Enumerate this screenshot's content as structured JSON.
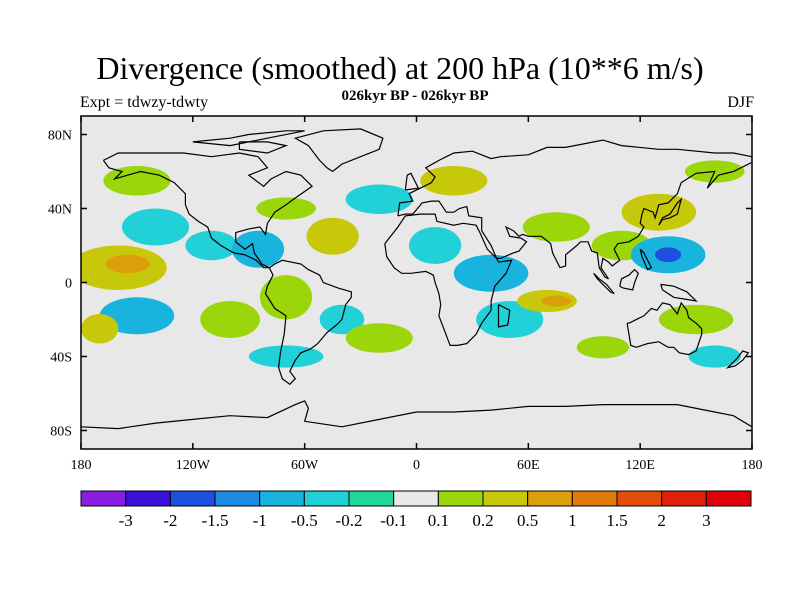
{
  "figure": {
    "title": "Divergence (smoothed) at 200 hPa (10**6 m/s)",
    "subtitle": "026kyr BP - 026kyr BP",
    "experiment": "Expt = tdwzy-tdwty",
    "season": "DJF"
  },
  "map": {
    "projection": "cylindrical equidistant",
    "lon_range": [
      -180,
      180
    ],
    "lat_range": [
      -90,
      90
    ],
    "background_color": "#e8e8e8",
    "coastline_color": "#000000",
    "x_ticks": [
      {
        "lon": -180,
        "label": "180"
      },
      {
        "lon": -120,
        "label": "120W"
      },
      {
        "lon": -60,
        "label": "60W"
      },
      {
        "lon": 0,
        "label": "0"
      },
      {
        "lon": 60,
        "label": "60E"
      },
      {
        "lon": 120,
        "label": "120E"
      },
      {
        "lon": 180,
        "label": "180"
      }
    ],
    "y_ticks": [
      {
        "lat": 80,
        "label": "80N"
      },
      {
        "lat": 40,
        "label": "40N"
      },
      {
        "lat": 0,
        "label": "0"
      },
      {
        "lat": -40,
        "label": "40S"
      },
      {
        "lat": -80,
        "label": "80S"
      }
    ],
    "anomaly_patches": [
      {
        "lon": -160,
        "lat": 8,
        "rx": 26,
        "ry": 12,
        "value": 0.5
      },
      {
        "lon": -155,
        "lat": 10,
        "rx": 12,
        "ry": 5,
        "value": 1
      },
      {
        "lon": -150,
        "lat": -18,
        "rx": 20,
        "ry": 10,
        "value": -0.5
      },
      {
        "lon": -170,
        "lat": -25,
        "rx": 10,
        "ry": 8,
        "value": 0.5
      },
      {
        "lon": -140,
        "lat": 30,
        "rx": 18,
        "ry": 10,
        "value": -0.2
      },
      {
        "lon": -150,
        "lat": 55,
        "rx": 18,
        "ry": 8,
        "value": 0.2
      },
      {
        "lon": -110,
        "lat": 20,
        "rx": 14,
        "ry": 8,
        "value": -0.2
      },
      {
        "lon": -85,
        "lat": 18,
        "rx": 14,
        "ry": 10,
        "value": -0.5
      },
      {
        "lon": -70,
        "lat": 40,
        "rx": 16,
        "ry": 6,
        "value": 0.2
      },
      {
        "lon": -45,
        "lat": 25,
        "rx": 14,
        "ry": 10,
        "value": 0.5
      },
      {
        "lon": -70,
        "lat": -8,
        "rx": 14,
        "ry": 12,
        "value": 0.2
      },
      {
        "lon": -100,
        "lat": -20,
        "rx": 16,
        "ry": 10,
        "value": 0.2
      },
      {
        "lon": -40,
        "lat": -20,
        "rx": 12,
        "ry": 8,
        "value": -0.2
      },
      {
        "lon": -70,
        "lat": -40,
        "rx": 20,
        "ry": 6,
        "value": -0.2
      },
      {
        "lon": -20,
        "lat": -30,
        "rx": 18,
        "ry": 8,
        "value": 0.2
      },
      {
        "lon": -20,
        "lat": 45,
        "rx": 18,
        "ry": 8,
        "value": -0.2
      },
      {
        "lon": 10,
        "lat": 20,
        "rx": 14,
        "ry": 10,
        "value": -0.2
      },
      {
        "lon": 40,
        "lat": 5,
        "rx": 20,
        "ry": 10,
        "value": -0.5
      },
      {
        "lon": 50,
        "lat": -20,
        "rx": 18,
        "ry": 10,
        "value": -0.2
      },
      {
        "lon": 70,
        "lat": -10,
        "rx": 16,
        "ry": 6,
        "value": 0.5
      },
      {
        "lon": 75,
        "lat": -10,
        "rx": 8,
        "ry": 3,
        "value": 1
      },
      {
        "lon": 20,
        "lat": 55,
        "rx": 18,
        "ry": 8,
        "value": 0.5
      },
      {
        "lon": 75,
        "lat": 30,
        "rx": 18,
        "ry": 8,
        "value": 0.2
      },
      {
        "lon": 110,
        "lat": 20,
        "rx": 16,
        "ry": 8,
        "value": 0.2
      },
      {
        "lon": 135,
        "lat": 15,
        "rx": 20,
        "ry": 10,
        "value": -0.5
      },
      {
        "lon": 135,
        "lat": 15,
        "rx": 7,
        "ry": 4,
        "value": -1.5
      },
      {
        "lon": 130,
        "lat": 38,
        "rx": 20,
        "ry": 10,
        "value": 0.5
      },
      {
        "lon": 150,
        "lat": -20,
        "rx": 20,
        "ry": 8,
        "value": 0.2
      },
      {
        "lon": 160,
        "lat": -40,
        "rx": 14,
        "ry": 6,
        "value": -0.2
      },
      {
        "lon": 100,
        "lat": -35,
        "rx": 14,
        "ry": 6,
        "value": 0.2
      },
      {
        "lon": 160,
        "lat": 60,
        "rx": 16,
        "ry": 6,
        "value": 0.2
      }
    ]
  },
  "colorbar": {
    "labels": [
      "-3",
      "-2",
      "-1.5",
      "-1",
      "-0.5",
      "-0.2",
      "-0.1",
      "0.1",
      "0.2",
      "0.5",
      "1",
      "1.5",
      "2",
      "3"
    ],
    "colors": [
      "#8a1ee0",
      "#3b10d8",
      "#1e50e0",
      "#1e8ce0",
      "#18b4de",
      "#22d0d8",
      "#1ed89a",
      "#e8e8e8",
      "#9ad60a",
      "#c8c80a",
      "#dca00a",
      "#e07a0a",
      "#e04e0a",
      "#e0200a",
      "#e0000a"
    ]
  }
}
